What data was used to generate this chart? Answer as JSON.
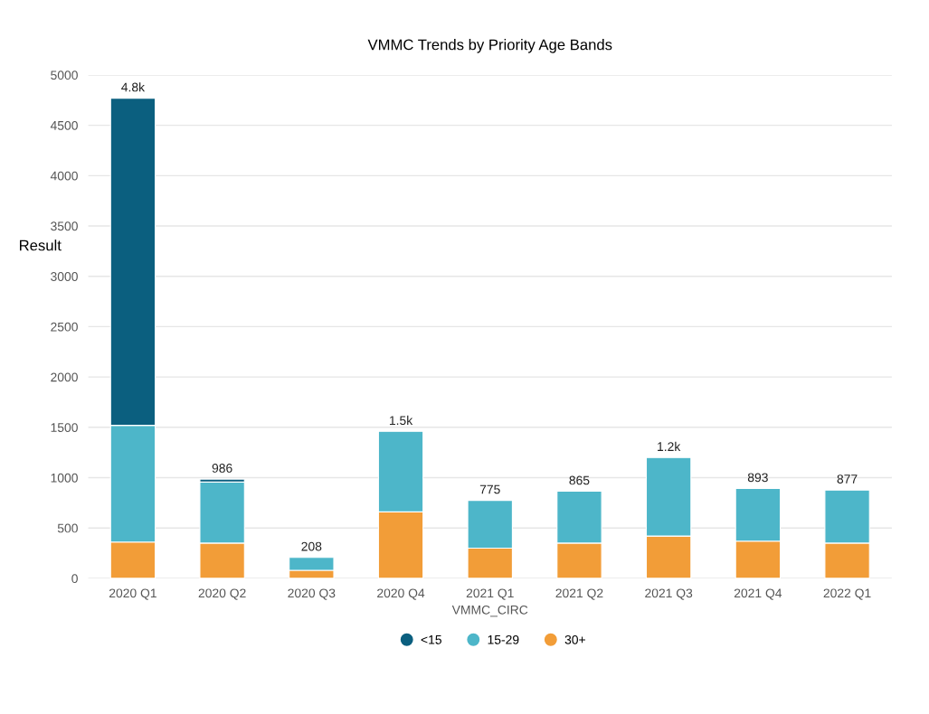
{
  "chart_data": {
    "type": "bar",
    "title": "VMMC Trends by Priority Age Bands",
    "xlabel": "VMMC_CIRC",
    "ylabel": "Result",
    "categories": [
      "2020 Q1",
      "2020 Q2",
      "2020 Q3",
      "2020 Q4",
      "2021 Q1",
      "2021 Q2",
      "2021 Q3",
      "2021 Q4",
      "2022 Q1"
    ],
    "stacked": true,
    "series": [
      {
        "name": "30+",
        "color": "#f29d38",
        "values": [
          360,
          350,
          80,
          660,
          300,
          350,
          420,
          370,
          350
        ]
      },
      {
        "name": "15-29",
        "color": "#4db6c9",
        "values": [
          1160,
          606,
          128,
          800,
          475,
          515,
          780,
          523,
          527
        ]
      },
      {
        "name": "<15",
        "color": "#0b5f7f",
        "values": [
          3250,
          30,
          null,
          null,
          null,
          null,
          null,
          null,
          null
        ]
      }
    ],
    "totals": [
      "4.8k",
      "986",
      "208",
      "1.5k",
      "775",
      "865",
      "1.2k",
      "893",
      "877"
    ],
    "ylim": [
      0,
      5000
    ],
    "yticks": [
      0,
      500,
      1000,
      1500,
      2000,
      2500,
      3000,
      3500,
      4000,
      4500,
      5000
    ],
    "grid": "y",
    "legend": "bottom"
  }
}
